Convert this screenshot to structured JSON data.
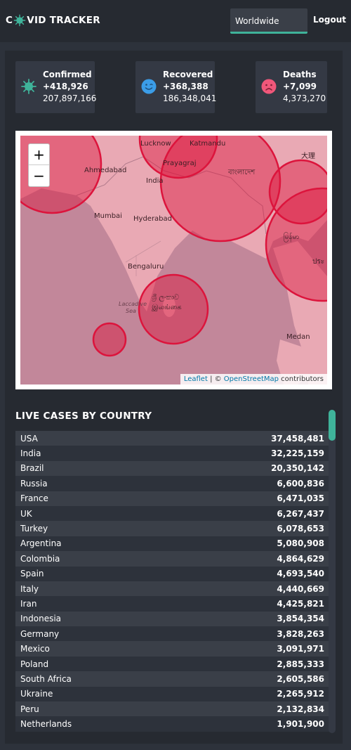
{
  "header": {
    "logo_prefix": "C",
    "logo_suffix": "VID TRACKER",
    "country_select": "Worldwide",
    "logout_label": "Logout"
  },
  "stats": [
    {
      "title": "Confirmed",
      "today": "+418,926",
      "total": "207,897,166",
      "icon": "virus-icon",
      "color": "#3fb39a"
    },
    {
      "title": "Recovered",
      "today": "+368,388",
      "total": "186,348,041",
      "icon": "smile-icon",
      "color": "#3b9de8"
    },
    {
      "title": "Deaths",
      "today": "+7,099",
      "total": "4,373,270",
      "icon": "sad-icon",
      "color": "#f0577a"
    }
  ],
  "map": {
    "zoom_in": "+",
    "zoom_out": "−",
    "attribution_leaflet": "Leaflet",
    "attribution_sep": " | © ",
    "attribution_osm": "OpenStreetMap",
    "attribution_rest": " contributors",
    "labels": {
      "lucknow": "Lucknow",
      "katmandu": "Katmandu",
      "ahmedabad": "Ahmedabad",
      "prayagraj": "Prayagraj",
      "india": "India",
      "bangladesh": "বাংলাদেশ",
      "mumbai": "Mumbai",
      "hyderabad": "Hyderabad",
      "myanmar": "မြန်မာ",
      "bengaluru": "Bengaluru",
      "srilanka1": "ශ්‍රී ලංකාව",
      "srilanka2": "இலங்கை",
      "laccadive": "Laccadive",
      "sea": "Sea",
      "medan": "Medan",
      "daili": "大理",
      "thai": "ประ"
    }
  },
  "list": {
    "title": "LIVE CASES BY COUNTRY",
    "rows": [
      {
        "country": "USA",
        "cases": "37,458,481"
      },
      {
        "country": "India",
        "cases": "32,225,159"
      },
      {
        "country": "Brazil",
        "cases": "20,350,142"
      },
      {
        "country": "Russia",
        "cases": "6,600,836"
      },
      {
        "country": "France",
        "cases": "6,471,035"
      },
      {
        "country": "UK",
        "cases": "6,267,437"
      },
      {
        "country": "Turkey",
        "cases": "6,078,653"
      },
      {
        "country": "Argentina",
        "cases": "5,080,908"
      },
      {
        "country": "Colombia",
        "cases": "4,864,629"
      },
      {
        "country": "Spain",
        "cases": "4,693,540"
      },
      {
        "country": "Italy",
        "cases": "4,440,669"
      },
      {
        "country": "Iran",
        "cases": "4,425,821"
      },
      {
        "country": "Indonesia",
        "cases": "3,854,354"
      },
      {
        "country": "Germany",
        "cases": "3,828,263"
      },
      {
        "country": "Mexico",
        "cases": "3,091,971"
      },
      {
        "country": "Poland",
        "cases": "2,885,333"
      },
      {
        "country": "South Africa",
        "cases": "2,605,586"
      },
      {
        "country": "Ukraine",
        "cases": "2,265,912"
      },
      {
        "country": "Peru",
        "cases": "2,132,834"
      },
      {
        "country": "Netherlands",
        "cases": "1,901,900"
      }
    ]
  },
  "colors": {
    "accent": "#3fb39a",
    "circle": "#dc143c"
  }
}
